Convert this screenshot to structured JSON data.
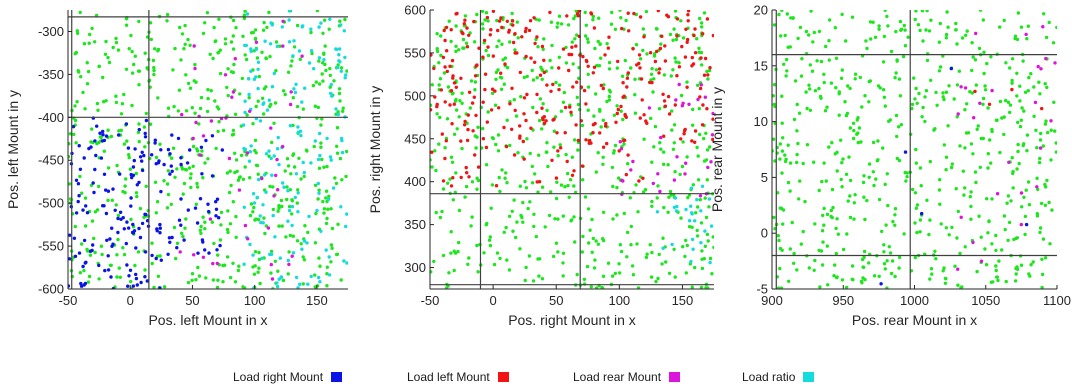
{
  "chart_data": [
    {
      "type": "scatter",
      "xlabel": "Pos. left Mount in x",
      "ylabel": "Pos. left Mount in y",
      "xlim": [
        -50,
        175
      ],
      "ylim": [
        -600,
        -275
      ],
      "xticks": [
        -50,
        0,
        50,
        100,
        150
      ],
      "yticks": [
        -600,
        -550,
        -500,
        -450,
        -400,
        -350,
        -300
      ],
      "reference_lines": {
        "x": [
          -47,
          15
        ],
        "y": [
          -283,
          -400
        ]
      },
      "regions": [
        {
          "series": "Load right Mount",
          "x": [
            -50,
            25
          ],
          "y": [
            -600,
            -400
          ],
          "count": 140
        },
        {
          "series": "Load right Mount",
          "x": [
            25,
            75
          ],
          "y": [
            -560,
            -420
          ],
          "count": 45
        },
        {
          "series": "Load ratio",
          "x": [
            90,
            175
          ],
          "y": [
            -600,
            -275
          ],
          "count": 170
        },
        {
          "series": "Load rear Mount",
          "x": [
            40,
            140
          ],
          "y": [
            -600,
            -275
          ],
          "count": 45
        }
      ],
      "background_series": "Load other"
    },
    {
      "type": "scatter",
      "xlabel": "Pos. right Mount in x",
      "ylabel": "Pos. right Mount in y",
      "xlim": [
        -50,
        175
      ],
      "ylim": [
        275,
        600
      ],
      "xticks": [
        -50,
        0,
        50,
        100,
        150
      ],
      "yticks": [
        300,
        350,
        400,
        450,
        500,
        550,
        600
      ],
      "reference_lines": {
        "x": [
          -10,
          69
        ],
        "y": [
          386,
          280
        ]
      },
      "regions": [
        {
          "series": "Load left Mount",
          "x": [
            -50,
            175
          ],
          "y": [
            440,
            600
          ],
          "count": 280
        },
        {
          "series": "Load left Mount",
          "x": [
            -50,
            120
          ],
          "y": [
            395,
            440
          ],
          "count": 30
        },
        {
          "series": "Load rear Mount",
          "x": [
            100,
            175
          ],
          "y": [
            380,
            520
          ],
          "count": 30
        },
        {
          "series": "Load ratio",
          "x": [
            130,
            175
          ],
          "y": [
            300,
            400
          ],
          "count": 25
        }
      ],
      "background_series": "Load other"
    },
    {
      "type": "scatter",
      "xlabel": "Pos. rear Mount in x",
      "ylabel": "Pos. rear Mount in y",
      "xlim": [
        900,
        1100
      ],
      "ylim": [
        -5,
        20
      ],
      "xticks": [
        900,
        950,
        1000,
        1050,
        1100
      ],
      "yticks": [
        -5,
        0,
        5,
        10,
        15,
        20
      ],
      "reference_lines": {
        "x": [
          903,
          997
        ],
        "y": [
          16,
          -2
        ]
      },
      "regions": [
        {
          "series": "Load rear Mount",
          "x": [
            1030,
            1100
          ],
          "y": [
            -5,
            20
          ],
          "count": 25
        },
        {
          "series": "Load right Mount",
          "x": [
            950,
            1090
          ],
          "y": [
            -5,
            15
          ],
          "count": 5
        },
        {
          "series": "Load left Mount",
          "x": [
            1040,
            1090
          ],
          "y": [
            10,
            20
          ],
          "count": 4
        }
      ],
      "background_series": "Load other"
    }
  ],
  "legend": [
    {
      "label": "Load right Mount",
      "color": "#0a14e6"
    },
    {
      "label": "Load left Mount",
      "color": "#f01414"
    },
    {
      "label": "Load rear Mount",
      "color": "#dc14dc"
    },
    {
      "label": "Load ratio",
      "color": "#14dcdc"
    }
  ],
  "colors": {
    "other": "#1ee61e",
    "reference_line": "#404040",
    "axis": "#262626"
  }
}
